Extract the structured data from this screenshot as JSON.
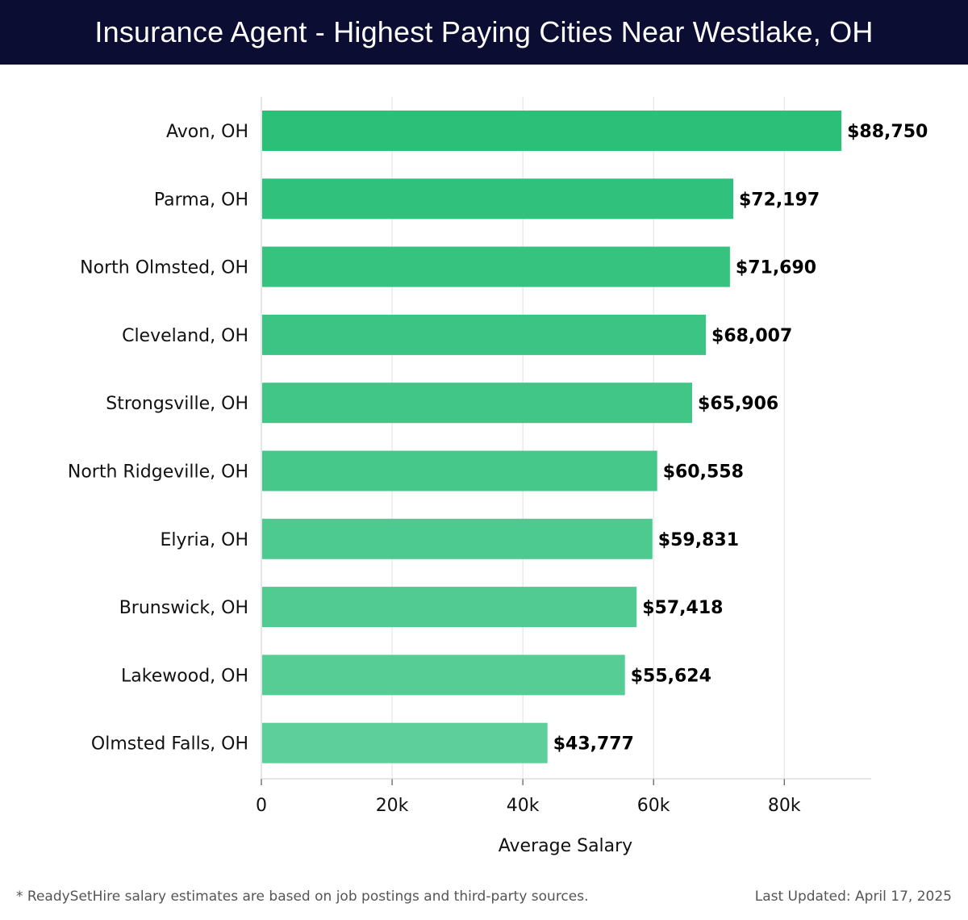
{
  "header": {
    "title": "Insurance Agent - Highest Paying Cities Near Westlake, OH"
  },
  "footer": {
    "note": "* ReadySetHire salary estimates are based on job postings and third-party sources.",
    "updated": "Last Updated: April 17, 2025"
  },
  "colors": {
    "header_bg": "#0b0d33",
    "bar_start": "#2bbf78",
    "bar_end": "#5ccf9a",
    "grid": "#e0e0e0"
  },
  "chart_data": {
    "type": "bar",
    "orientation": "horizontal",
    "title": "Insurance Agent - Highest Paying Cities Near Westlake, OH",
    "xlabel": "Average Salary",
    "ylabel": "",
    "xlim": [
      0,
      93300
    ],
    "x_ticks": [
      0,
      20000,
      40000,
      60000,
      80000
    ],
    "x_tick_labels": [
      "0",
      "20k",
      "40k",
      "60k",
      "80k"
    ],
    "grid": true,
    "categories": [
      "Avon, OH",
      "Parma, OH",
      "North Olmsted, OH",
      "Cleveland, OH",
      "Strongsville, OH",
      "North Ridgeville, OH",
      "Elyria, OH",
      "Brunswick, OH",
      "Lakewood, OH",
      "Olmsted Falls, OH"
    ],
    "values": [
      88750,
      72197,
      71690,
      68007,
      65906,
      60558,
      59831,
      57418,
      55624,
      43777
    ],
    "value_labels": [
      "$88,750",
      "$72,197",
      "$71,690",
      "$68,007",
      "$65,906",
      "$60,558",
      "$59,831",
      "$57,418",
      "$55,624",
      "$43,777"
    ]
  }
}
